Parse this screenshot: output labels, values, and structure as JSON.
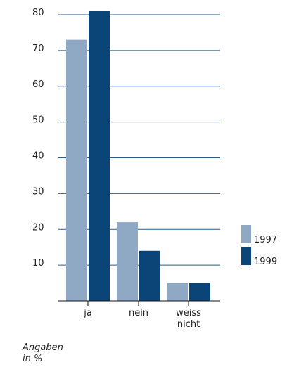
{
  "chart_data": {
    "type": "bar",
    "categories": [
      [
        "ja"
      ],
      [
        "nein"
      ],
      [
        "weiss",
        "nicht"
      ]
    ],
    "series": [
      {
        "name": "1997",
        "values": [
          73,
          22,
          5
        ],
        "color": "#8fa8c3"
      },
      {
        "name": "1999",
        "values": [
          81,
          14,
          5
        ],
        "color": "#0b4477"
      }
    ],
    "ylim": [
      0,
      80
    ],
    "yticks": [
      10,
      20,
      30,
      40,
      50,
      60,
      70,
      80
    ],
    "grid": true,
    "legend": "right",
    "note": [
      "Angaben",
      "in %"
    ]
  }
}
